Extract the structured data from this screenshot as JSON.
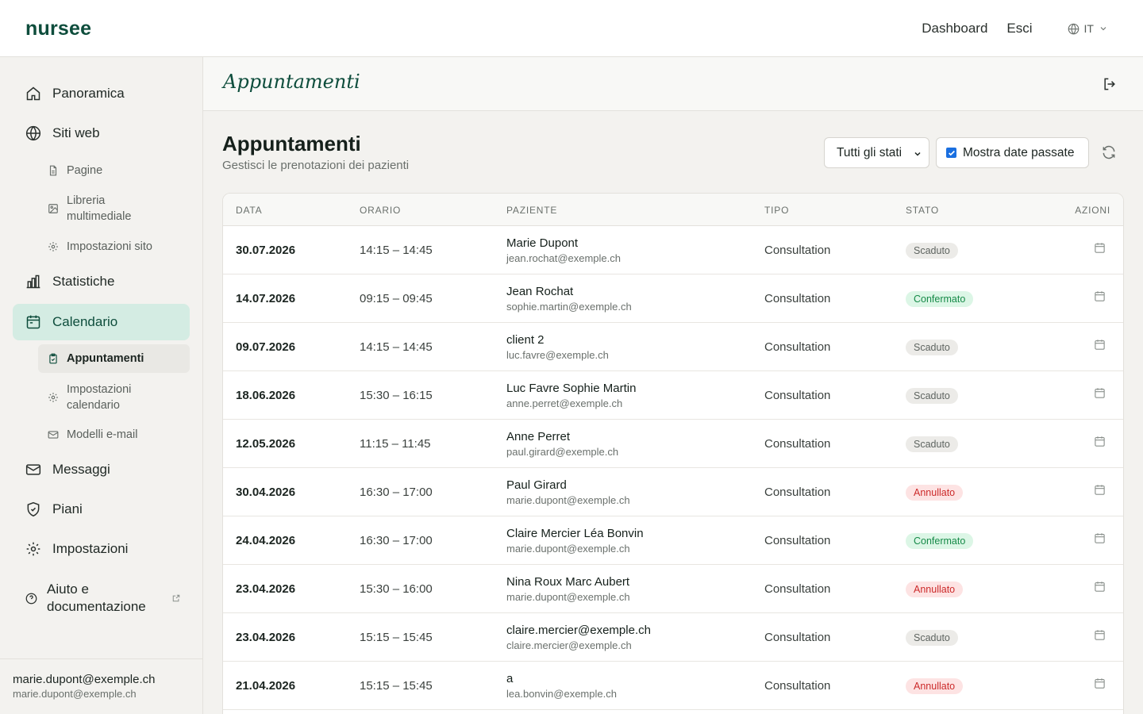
{
  "app": {
    "logo": "nursee"
  },
  "topnav": {
    "dashboard": "Dashboard",
    "logout": "Esci",
    "language": "IT"
  },
  "sidebar": {
    "items": [
      {
        "label": "Panoramica",
        "icon": "home-icon"
      },
      {
        "label": "Siti web",
        "icon": "globe-icon"
      },
      {
        "label": "Statistiche",
        "icon": "bar-chart-icon"
      },
      {
        "label": "Calendario",
        "icon": "calendar-icon"
      },
      {
        "label": "Messaggi",
        "icon": "mail-icon"
      },
      {
        "label": "Piani",
        "icon": "shield-icon"
      },
      {
        "label": "Impostazioni",
        "icon": "gear-icon"
      }
    ],
    "website_sub": [
      {
        "label": "Pagine",
        "icon": "file-icon"
      },
      {
        "label": "Libreria multimediale",
        "icon": "image-icon"
      },
      {
        "label": "Impostazioni sito",
        "icon": "gear-icon"
      }
    ],
    "calendar_sub": [
      {
        "label": "Appuntamenti",
        "icon": "clipboard-icon"
      },
      {
        "label": "Impostazioni calendario",
        "icon": "gear-icon"
      },
      {
        "label": "Modelli e-mail",
        "icon": "mail-icon"
      }
    ],
    "help": {
      "label": "Aiuto e documentazione",
      "icon": "external-link-icon"
    },
    "footer": {
      "name": "marie.dupont@exemple.ch",
      "email": "marie.dupont@exemple.ch"
    }
  },
  "header": {
    "title": "Appuntamenti"
  },
  "main": {
    "title": "Appuntamenti",
    "subtitle": "Gestisci le prenotazioni dei pazienti",
    "filter_status": "Tutti gli stati",
    "show_past_label": "Mostra date passate",
    "show_past_checked": true
  },
  "table": {
    "headers": {
      "date": "DATA",
      "time": "ORARIO",
      "patient": "PAZIENTE",
      "type": "TIPO",
      "status": "STATO",
      "actions": "AZIONI"
    },
    "rows": [
      {
        "date": "30.07.2026",
        "time": "14:15 – 14:45",
        "name": "Marie Dupont",
        "email": "jean.rochat@exemple.ch",
        "type": "Consultation",
        "status": "Scaduto",
        "status_kind": "scaduto"
      },
      {
        "date": "14.07.2026",
        "time": "09:15 – 09:45",
        "name": "Jean Rochat",
        "email": "sophie.martin@exemple.ch",
        "type": "Consultation",
        "status": "Confermato",
        "status_kind": "confermato"
      },
      {
        "date": "09.07.2026",
        "time": "14:15 – 14:45",
        "name": "client 2",
        "email": "luc.favre@exemple.ch",
        "type": "Consultation",
        "status": "Scaduto",
        "status_kind": "scaduto"
      },
      {
        "date": "18.06.2026",
        "time": "15:30 – 16:15",
        "name": "Luc Favre Sophie Martin",
        "email": "anne.perret@exemple.ch",
        "type": "Consultation",
        "status": "Scaduto",
        "status_kind": "scaduto"
      },
      {
        "date": "12.05.2026",
        "time": "11:15 – 11:45",
        "name": "Anne Perret",
        "email": "paul.girard@exemple.ch",
        "type": "Consultation",
        "status": "Scaduto",
        "status_kind": "scaduto"
      },
      {
        "date": "30.04.2026",
        "time": "16:30 – 17:00",
        "name": "Paul Girard",
        "email": "marie.dupont@exemple.ch",
        "type": "Consultation",
        "status": "Annullato",
        "status_kind": "annullato"
      },
      {
        "date": "24.04.2026",
        "time": "16:30 – 17:00",
        "name": "Claire Mercier Léa Bonvin",
        "email": "marie.dupont@exemple.ch",
        "type": "Consultation",
        "status": "Confermato",
        "status_kind": "confermato"
      },
      {
        "date": "23.04.2026",
        "time": "15:30 – 16:00",
        "name": "Nina Roux Marc Aubert",
        "email": "marie.dupont@exemple.ch",
        "type": "Consultation",
        "status": "Annullato",
        "status_kind": "annullato"
      },
      {
        "date": "23.04.2026",
        "time": "15:15 – 15:45",
        "name": "claire.mercier@exemple.ch",
        "email": "claire.mercier@exemple.ch",
        "type": "Consultation",
        "status": "Scaduto",
        "status_kind": "scaduto"
      },
      {
        "date": "21.04.2026",
        "time": "15:15 – 15:45",
        "name": "a",
        "email": "lea.bonvin@exemple.ch",
        "type": "Consultation",
        "status": "Annullato",
        "status_kind": "annullato"
      }
    ]
  },
  "colors": {
    "brand": "#0e4d3c",
    "active_nav_bg": "#d4ece3",
    "checkbox": "#1a6fe0"
  }
}
